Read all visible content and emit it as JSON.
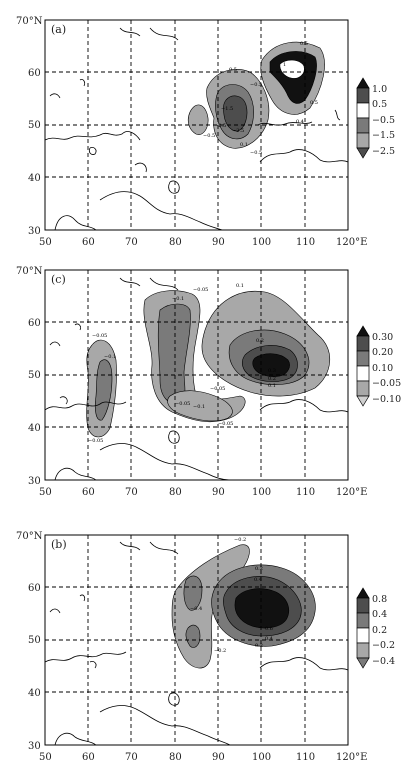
{
  "panels": [
    {
      "label": "(a)",
      "lat_labels": [
        "70°N",
        "60",
        "50",
        "40",
        "30"
      ],
      "lon_labels": [
        "50",
        "60",
        "70",
        "80",
        "90",
        "100",
        "110",
        "120°E"
      ],
      "colorbar_labels": [
        "1.0",
        "0.5",
        "−0.5",
        "−1.5",
        "−2.5"
      ],
      "contour_labels": [
        "0.5",
        "1",
        "0.5",
        "−0.5",
        "−1.5",
        "−2.5",
        "−2.5",
        "−0.5",
        "0.4",
        "−0.5",
        "0.5",
        "0.1"
      ]
    },
    {
      "label": "(c)",
      "lat_labels": [
        "70°N",
        "60",
        "50",
        "40",
        "30"
      ],
      "lon_labels": [
        "50",
        "60",
        "70",
        "80",
        "90",
        "100",
        "110",
        "120°E"
      ],
      "colorbar_labels": [
        "0.30",
        "0.20",
        "0.10",
        "−0.05",
        "−0.10"
      ],
      "contour_labels": [
        "−0.05",
        "−0.1",
        "−0.05",
        "−0.1",
        "0.1",
        "−0.05",
        "0.2",
        "0.3",
        "0.2",
        "0.1",
        "−0.1",
        "−0.05",
        "−0.05",
        "−0.05"
      ]
    },
    {
      "label": "(b)",
      "lat_labels": [
        "70°N",
        "60",
        "50",
        "40",
        "30"
      ],
      "lon_labels": [
        "50",
        "60",
        "70",
        "80",
        "90",
        "100",
        "110",
        "120°E"
      ],
      "colorbar_labels": [
        "0.8",
        "0.4",
        "0.2",
        "−0.2",
        "−0.4"
      ],
      "contour_labels": [
        "−0.2",
        "0.2",
        "0.4",
        "−0.4",
        "0.6",
        "0.4",
        "0.2",
        "−0.2"
      ]
    }
  ],
  "colors": {
    "c1": "#111111",
    "c2": "#4d4d4d",
    "c3": "#7a7a7a",
    "c4": "#a8a8a8",
    "c5": "#cfcfcf",
    "white": "#ffffff"
  }
}
